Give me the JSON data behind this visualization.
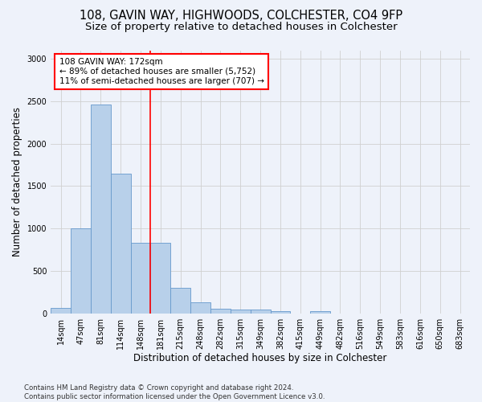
{
  "title1": "108, GAVIN WAY, HIGHWOODS, COLCHESTER, CO4 9FP",
  "title2": "Size of property relative to detached houses in Colchester",
  "xlabel": "Distribution of detached houses by size in Colchester",
  "ylabel": "Number of detached properties",
  "categories": [
    "14sqm",
    "47sqm",
    "81sqm",
    "114sqm",
    "148sqm",
    "181sqm",
    "215sqm",
    "248sqm",
    "282sqm",
    "315sqm",
    "349sqm",
    "382sqm",
    "415sqm",
    "449sqm",
    "482sqm",
    "516sqm",
    "549sqm",
    "583sqm",
    "616sqm",
    "650sqm",
    "683sqm"
  ],
  "values": [
    60,
    1000,
    2460,
    1650,
    830,
    830,
    305,
    130,
    55,
    45,
    45,
    30,
    0,
    30,
    0,
    0,
    0,
    0,
    0,
    0,
    0
  ],
  "bar_color": "#b8d0ea",
  "bar_edge_color": "#6699cc",
  "vline_color": "red",
  "annotation_text": "108 GAVIN WAY: 172sqm\n← 89% of detached houses are smaller (5,752)\n11% of semi-detached houses are larger (707) →",
  "annotation_box_color": "white",
  "annotation_box_edge": "red",
  "ylim": [
    0,
    3100
  ],
  "yticks": [
    0,
    500,
    1000,
    1500,
    2000,
    2500,
    3000
  ],
  "footer": "Contains HM Land Registry data © Crown copyright and database right 2024.\nContains public sector information licensed under the Open Government Licence v3.0.",
  "bg_color": "#eef2fa",
  "grid_color": "#d0d0d0",
  "title1_fontsize": 10.5,
  "title2_fontsize": 9.5,
  "xlabel_fontsize": 8.5,
  "ylabel_fontsize": 8.5,
  "tick_fontsize": 7,
  "annotation_fontsize": 7.5,
  "footer_fontsize": 6.2
}
